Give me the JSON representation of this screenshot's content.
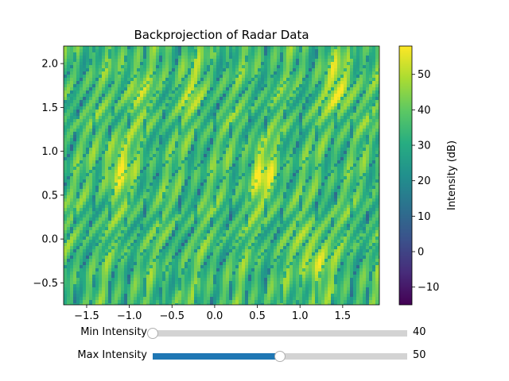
{
  "chart_data": {
    "type": "heatmap",
    "title": "Backprojection of Radar Data",
    "xlabel": "",
    "ylabel": "",
    "xlim": [
      -1.77,
      1.93
    ],
    "ylim": [
      -0.75,
      2.2
    ],
    "x_ticks": [
      -1.5,
      -1.0,
      -0.5,
      0.0,
      0.5,
      1.0,
      1.5
    ],
    "x_tick_labels": [
      "−1.5",
      "−1.0",
      "−0.5",
      "0.0",
      "0.5",
      "1.0",
      "1.5"
    ],
    "y_ticks": [
      -0.5,
      0.0,
      0.5,
      1.0,
      1.5,
      2.0
    ],
    "y_tick_labels": [
      "−0.5",
      "0.0",
      "0.5",
      "1.0",
      "1.5",
      "2.0"
    ],
    "colormap": "viridis",
    "colorbar": {
      "label": "Intensity (dB)",
      "range": [
        -15,
        58
      ],
      "ticks": [
        -10,
        0,
        10,
        20,
        30,
        40,
        50
      ],
      "tick_labels": [
        "−10",
        "0",
        "10",
        "20",
        "30",
        "40",
        "50"
      ]
    },
    "bright_regions": [
      {
        "x": -1.15,
        "y": 0.85,
        "level": "high"
      },
      {
        "x": 1.15,
        "y": -0.2,
        "level": "high"
      },
      {
        "x": 1.45,
        "y": 1.75,
        "level": "high"
      },
      {
        "x": 0.55,
        "y": 0.75,
        "level": "high"
      },
      {
        "x": -0.95,
        "y": 1.7,
        "level": "medium"
      },
      {
        "x": -0.3,
        "y": 1.75,
        "level": "medium"
      }
    ]
  },
  "sliders": [
    {
      "label": "Min Intensity",
      "value": "40",
      "fraction": 0.0
    },
    {
      "label": "Max Intensity",
      "value": "50",
      "fraction": 0.5
    }
  ],
  "colors": {
    "slider_fill": "#1f77b4",
    "slider_track": "#d3d3d3"
  }
}
